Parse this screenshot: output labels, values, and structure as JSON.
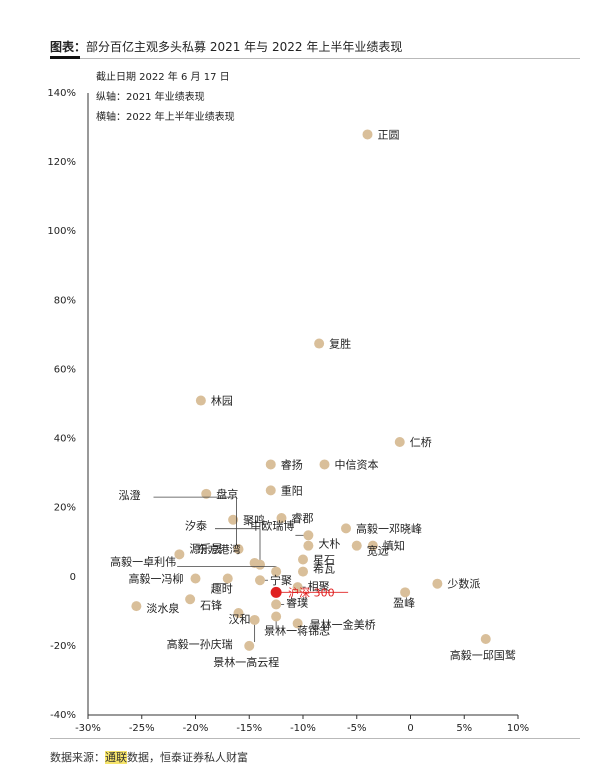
{
  "figure": {
    "title_label": "图表：",
    "title_text": "部分百亿主观多头私募 2021 年与 2022 年上半年业绩表现"
  },
  "notes": [
    "截止日期 2022 年 6 月 17 日",
    "纵轴：2021 年业绩表现",
    "横轴：2022 年上半年业绩表现"
  ],
  "footer": {
    "prefix": "数据来源：",
    "highlight": "通联",
    "suffix": "数据，恒泰证券私人财富"
  },
  "colors": {
    "point": "#d9bf9a",
    "highlight": "#e02020",
    "axis": "#333333",
    "text": "#222222"
  },
  "chart_data": {
    "type": "scatter",
    "title": "部分百亿主观多头私募 2021 年与 2022 年上半年业绩表现",
    "xlabel": "2022 年上半年业绩表现",
    "ylabel": "2021 年业绩表现",
    "xlim": [
      -30,
      10
    ],
    "ylim": [
      -40,
      140
    ],
    "x_ticks": [
      -30,
      -25,
      -20,
      -15,
      -10,
      -5,
      0,
      5,
      10
    ],
    "x_tick_labels": [
      "-30%",
      "-25%",
      "-20%",
      "-15%",
      "-10%",
      "-5%",
      "0",
      "5%",
      "10%"
    ],
    "y_ticks": [
      -40,
      -20,
      0,
      20,
      40,
      60,
      80,
      100,
      120,
      140
    ],
    "y_tick_labels": [
      "-40%",
      "-20%",
      "0",
      "20%",
      "40%",
      "60%",
      "80%",
      "100%",
      "120%",
      "140%"
    ],
    "grid": false,
    "points": [
      {
        "name": "正圆",
        "x": -4.0,
        "y": 128.0
      },
      {
        "name": "复胜",
        "x": -8.5,
        "y": 67.5
      },
      {
        "name": "林园",
        "x": -19.5,
        "y": 51.0
      },
      {
        "name": "仁桥",
        "x": -1.0,
        "y": 39.0
      },
      {
        "name": "睿扬",
        "x": -13.0,
        "y": 32.5
      },
      {
        "name": "中信资本",
        "x": -8.0,
        "y": 32.5
      },
      {
        "name": "盘京",
        "x": -19.0,
        "y": 24.0
      },
      {
        "name": "重阳",
        "x": -13.0,
        "y": 25.0
      },
      {
        "name": "聚鸣",
        "x": -16.5,
        "y": 16.5
      },
      {
        "name": "睿郡",
        "x": -12.0,
        "y": 17.0
      },
      {
        "name": "高毅一邓晓峰",
        "x": -6.0,
        "y": 14.0
      },
      {
        "name": "慎知",
        "x": -3.5,
        "y": 9.0
      },
      {
        "name": "泓澄",
        "x": -16.0,
        "y": 8.0
      },
      {
        "name": "汐泰",
        "x": -14.0,
        "y": 3.5
      },
      {
        "name": "源乐晟",
        "x": -21.5,
        "y": 6.5
      },
      {
        "name": "中欧瑞博",
        "x": -9.5,
        "y": 12.0
      },
      {
        "name": "大朴",
        "x": -9.5,
        "y": 9.0
      },
      {
        "name": "东方港湾",
        "x": -14.5,
        "y": 4.0
      },
      {
        "name": "宽远",
        "x": -5.0,
        "y": 9.0
      },
      {
        "name": "星石",
        "x": -10.0,
        "y": 5.0
      },
      {
        "name": "希瓦",
        "x": -10.0,
        "y": 1.5
      },
      {
        "name": "高毅一卓利伟",
        "x": -12.5,
        "y": 1.5
      },
      {
        "name": "高毅一冯柳",
        "x": -20.0,
        "y": -0.5
      },
      {
        "name": "趣时",
        "x": -17.0,
        "y": -0.5
      },
      {
        "name": "宁聚",
        "x": -14.0,
        "y": -1.0
      },
      {
        "name": "相聚",
        "x": -10.5,
        "y": -3.0
      },
      {
        "name": "少数派",
        "x": 2.5,
        "y": -2.0
      },
      {
        "name": "盈峰",
        "x": -0.5,
        "y": -4.5
      },
      {
        "name": "石锋",
        "x": -20.5,
        "y": -6.5
      },
      {
        "name": "淡水泉",
        "x": -25.5,
        "y": -8.5
      },
      {
        "name": "汉和",
        "x": -16.0,
        "y": -10.5
      },
      {
        "name": "睿璞",
        "x": -12.5,
        "y": -8.0
      },
      {
        "name": "高毅一孙庆瑞",
        "x": -14.5,
        "y": -12.5
      },
      {
        "name": "景林一金美桥",
        "x": -10.5,
        "y": -13.5
      },
      {
        "name": "景林一蒋锦志",
        "x": -12.5,
        "y": -11.5
      },
      {
        "name": "高毅一邱国鹫",
        "x": 7.0,
        "y": -18.0
      },
      {
        "name": "景林一高云程",
        "x": -15.0,
        "y": -20.0
      },
      {
        "name": "沪深 300",
        "x": -12.5,
        "y": -4.5,
        "highlight": true
      }
    ]
  }
}
